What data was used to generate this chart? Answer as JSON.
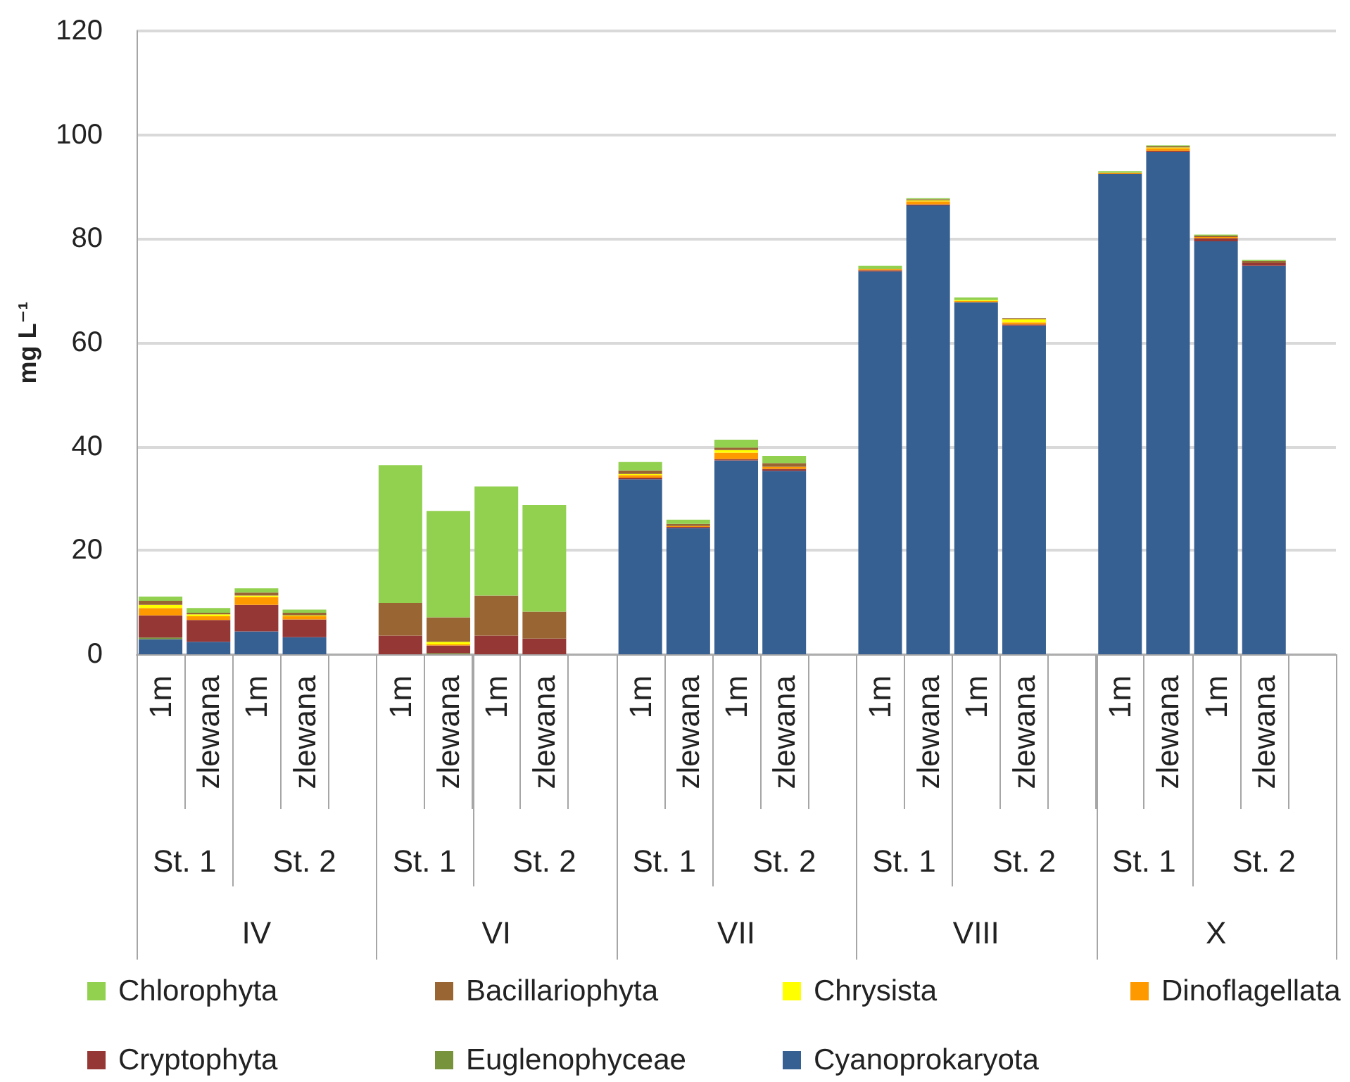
{
  "chart_data": {
    "type": "bar",
    "stacked": true,
    "ylabel": "mg L⁻¹",
    "categories": [
      "1m",
      "zlewana",
      "1m",
      "zlewana",
      null,
      "1m",
      "zlewana",
      "1m",
      "zlewana",
      null,
      "1m",
      "zlewana",
      "1m",
      "zlewana",
      null,
      "1m",
      "zlewana",
      "1m",
      "zlewana",
      null,
      "1m",
      "zlewana",
      "1m",
      "zlewana",
      null
    ],
    "annotations": [
      "St. 1",
      "St. 2",
      "St. 1",
      "St. 2",
      "St. 1",
      "St. 2",
      "St. 1",
      "St. 2",
      "St. 1",
      "St. 2",
      "IV",
      "VI",
      "VII",
      "VIII",
      "X"
    ],
    "series": [
      {
        "name": "Cyanoprokaryota",
        "color": "#376092",
        "values": [
          2.9,
          2.4,
          4.4,
          3.3,
          null,
          null,
          null,
          null,
          null,
          null,
          33.7,
          24.3,
          37.3,
          35.3,
          null,
          73.7,
          86.4,
          67.8,
          63.3,
          null,
          92.5,
          96.7,
          79.5,
          74.8,
          null
        ]
      },
      {
        "name": "Euglenophyceae",
        "color": "#77933c",
        "values": [
          0.3,
          null,
          null,
          null,
          null,
          null,
          0.2,
          null,
          null,
          null,
          null,
          null,
          null,
          null,
          null,
          null,
          null,
          null,
          null,
          null,
          null,
          null,
          null,
          null,
          null
        ]
      },
      {
        "name": "Cryptophyta",
        "color": "#953735",
        "values": [
          4.3,
          4.2,
          5.1,
          3.4,
          null,
          3.6,
          1.5,
          3.6,
          3.0,
          null,
          0.3,
          0.2,
          0.3,
          0.4,
          null,
          0.2,
          0.2,
          null,
          0.2,
          null,
          null,
          0.2,
          0.6,
          0.5,
          null
        ]
      },
      {
        "name": "Dinoflagellata",
        "color": "#ff9900",
        "values": [
          1.4,
          0.7,
          1.5,
          0.6,
          null,
          null,
          0.2,
          null,
          null,
          null,
          0.5,
          0.2,
          1.2,
          0.4,
          null,
          0.3,
          0.6,
          0.2,
          0.4,
          null,
          0.2,
          0.5,
          0.2,
          null,
          null
        ]
      },
      {
        "name": "Chrysista",
        "color": "#ffff00",
        "values": [
          0.6,
          0.4,
          0.3,
          0.2,
          null,
          null,
          0.5,
          null,
          null,
          null,
          0.2,
          null,
          0.5,
          null,
          null,
          null,
          0.2,
          0.2,
          0.6,
          null,
          null,
          0.2,
          null,
          null,
          null
        ]
      },
      {
        "name": "Bacillariophyta",
        "color": "#996633",
        "values": [
          0.8,
          0.3,
          0.6,
          0.5,
          null,
          6.3,
          4.7,
          7.7,
          5.2,
          null,
          0.7,
          0.4,
          0.5,
          0.7,
          null,
          null,
          0.2,
          null,
          0.2,
          null,
          null,
          0.2,
          0.3,
          0.4,
          null
        ]
      },
      {
        "name": "Chlorophyta",
        "color": "#92d050",
        "values": [
          0.8,
          0.9,
          0.8,
          0.6,
          null,
          26.5,
          20.5,
          21.0,
          20.5,
          null,
          1.6,
          0.8,
          1.5,
          1.4,
          null,
          0.6,
          0.2,
          0.5,
          null,
          null,
          0.3,
          0.2,
          0.2,
          0.2,
          null
        ]
      }
    ],
    "ylim": [
      0,
      120
    ],
    "yticks": [
      0,
      20,
      40,
      60,
      80,
      100,
      120
    ],
    "grid": "y",
    "legend": "bottom"
  }
}
